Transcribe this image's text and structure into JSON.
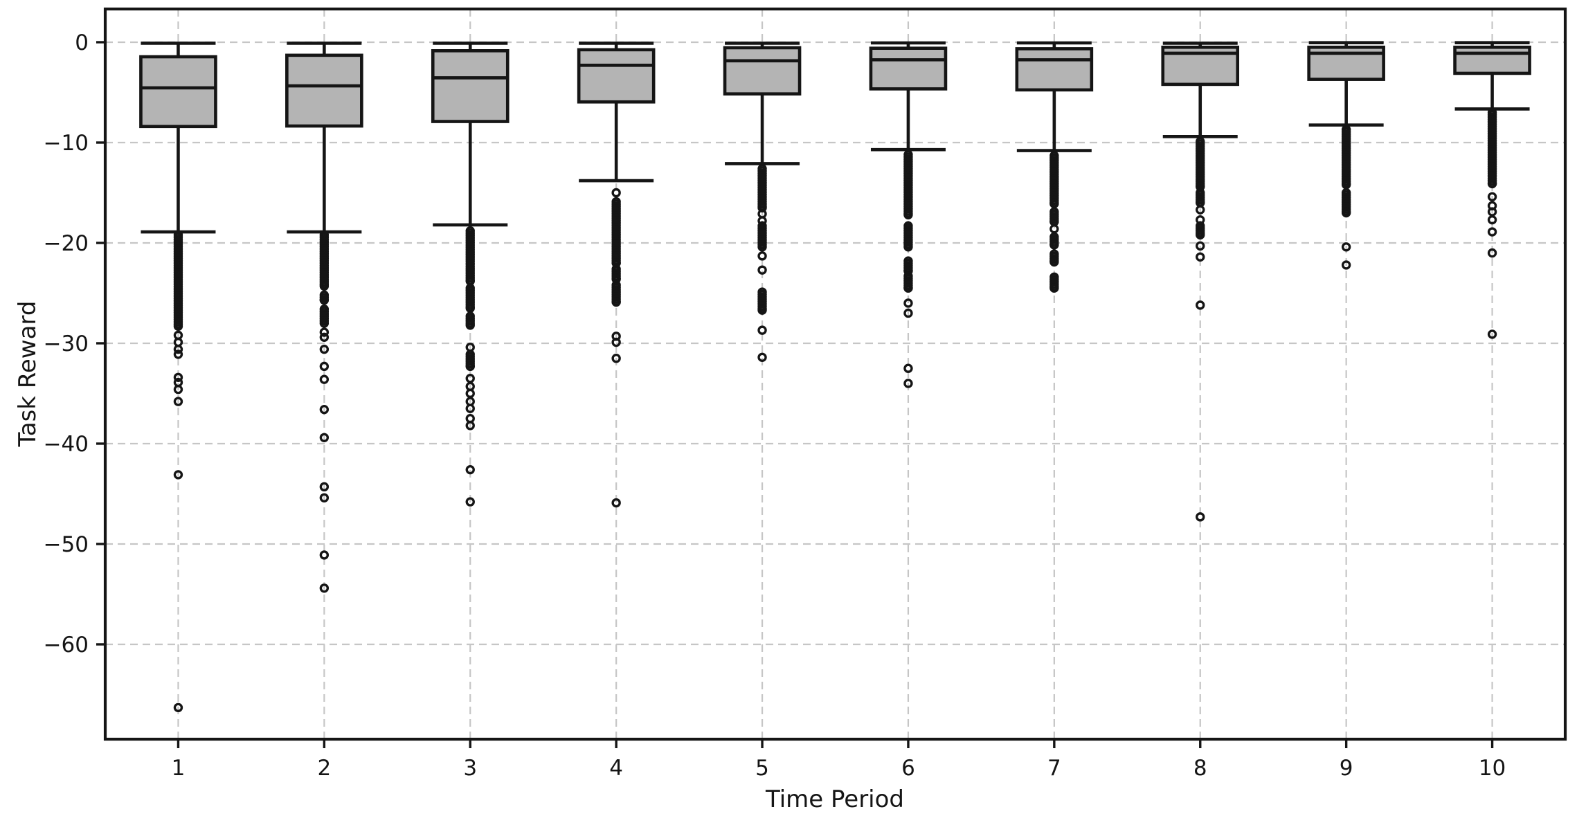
{
  "figure": {
    "background": "#ffffff",
    "description": "Box-and-whisker plot of Task Reward across 10 time periods"
  },
  "chart_data": {
    "type": "box",
    "title": "",
    "xlabel": "Time Period",
    "ylabel": "Task Reward",
    "categories": [
      "1",
      "2",
      "3",
      "4",
      "5",
      "6",
      "7",
      "8",
      "9",
      "10"
    ],
    "y_ticks": [
      0,
      -10,
      -20,
      -30,
      -40,
      -50,
      -60
    ],
    "y_tick_labels": [
      "0",
      "−10",
      "−20",
      "−30",
      "−40",
      "−50",
      "−60"
    ],
    "ylim": [
      -69.45,
      3.31
    ],
    "grid": {
      "shown": true,
      "style": "dashed",
      "axes": "both"
    },
    "legend": {
      "shown": false
    },
    "colors": {
      "box_fill": "#b4b4b4",
      "line": "#151515",
      "grid": "#c6c6c6",
      "background": "#ffffff",
      "text": "#151515"
    },
    "boxes": [
      {
        "label": "1",
        "whisker_high": -0.1,
        "q3": -1.45,
        "median": -4.55,
        "q1": -8.4,
        "whisker_low": -18.9,
        "outlier_clusters": [
          [
            -19.2,
            -28.3
          ]
        ],
        "outliers": [
          -29.2,
          -29.9,
          -30.6,
          -31.1,
          -33.4,
          -33.9,
          -34.6,
          -35.8,
          -43.1,
          -66.3
        ]
      },
      {
        "label": "2",
        "whisker_high": -0.1,
        "q3": -1.3,
        "median": -4.35,
        "q1": -8.35,
        "whisker_low": -18.9,
        "outlier_clusters": [
          [
            -19.2,
            -24.3
          ],
          [
            -25.2,
            -25.7
          ],
          [
            -26.6,
            -28.0
          ]
        ],
        "outliers": [
          -28.9,
          -29.4,
          -30.6,
          -32.3,
          -33.6,
          -36.6,
          -39.4,
          -44.3,
          -45.4,
          -51.1,
          -54.4
        ]
      },
      {
        "label": "3",
        "whisker_high": -0.1,
        "q3": -0.85,
        "median": -3.55,
        "q1": -7.9,
        "whisker_low": -18.2,
        "outlier_clusters": [
          [
            -18.8,
            -23.8
          ],
          [
            -24.5,
            -26.5
          ],
          [
            -27.3,
            -28.2
          ],
          [
            -31.1,
            -32.3
          ]
        ],
        "outliers": [
          -30.4,
          -33.5,
          -34.3,
          -35.0,
          -35.8,
          -36.5,
          -37.5,
          -38.2,
          -42.6,
          -45.8
        ]
      },
      {
        "label": "4",
        "whisker_high": -0.1,
        "q3": -0.75,
        "median": -2.3,
        "q1": -5.95,
        "whisker_low": -13.8,
        "outlier_clusters": [
          [
            -15.9,
            -22.0
          ],
          [
            -22.6,
            -23.6
          ],
          [
            -24.2,
            -25.9
          ]
        ],
        "outliers": [
          -15.0,
          -29.3,
          -29.9,
          -31.5,
          -45.9
        ]
      },
      {
        "label": "5",
        "whisker_high": -0.1,
        "q3": -0.55,
        "median": -1.85,
        "q1": -5.15,
        "whisker_low": -12.1,
        "outlier_clusters": [
          [
            -12.6,
            -16.5
          ],
          [
            -18.3,
            -20.4
          ],
          [
            -24.9,
            -26.7
          ]
        ],
        "outliers": [
          -17.1,
          -17.8,
          -21.3,
          -22.7,
          -28.7,
          -31.4
        ]
      },
      {
        "label": "6",
        "whisker_high": -0.07,
        "q3": -0.6,
        "median": -1.75,
        "q1": -4.65,
        "whisker_low": -10.7,
        "outlier_clusters": [
          [
            -11.2,
            -17.2
          ],
          [
            -18.3,
            -20.4
          ],
          [
            -21.8,
            -22.8
          ],
          [
            -23.3,
            -24.5
          ]
        ],
        "outliers": [
          -26.0,
          -27.0,
          -32.5,
          -34.0
        ]
      },
      {
        "label": "7",
        "whisker_high": -0.07,
        "q3": -0.65,
        "median": -1.75,
        "q1": -4.75,
        "whisker_low": -10.8,
        "outlier_clusters": [
          [
            -11.3,
            -16.1
          ],
          [
            -16.9,
            -17.9
          ],
          [
            -19.4,
            -20.2
          ],
          [
            -21.1,
            -21.9
          ],
          [
            -23.4,
            -24.5
          ]
        ],
        "outliers": [
          -18.6
        ]
      },
      {
        "label": "8",
        "whisker_high": -0.1,
        "q3": -0.5,
        "median": -1.1,
        "q1": -4.2,
        "whisker_low": -9.4,
        "outlier_clusters": [
          [
            -9.9,
            -14.4
          ],
          [
            -15.0,
            -16.0
          ],
          [
            -18.3,
            -19.2
          ]
        ],
        "outliers": [
          -16.7,
          -17.7,
          -20.3,
          -21.4,
          -26.2,
          -47.3
        ]
      },
      {
        "label": "9",
        "whisker_high": -0.05,
        "q3": -0.5,
        "median": -1.1,
        "q1": -3.7,
        "whisker_low": -8.25,
        "outlier_clusters": [
          [
            -8.7,
            -14.2
          ],
          [
            -15.0,
            -17.0
          ]
        ],
        "outliers": [
          -20.4,
          -22.2
        ]
      },
      {
        "label": "10",
        "whisker_high": -0.05,
        "q3": -0.5,
        "median": -1.1,
        "q1": -3.1,
        "whisker_low": -6.65,
        "outlier_clusters": [
          [
            -7.0,
            -14.1
          ]
        ],
        "outliers": [
          -15.4,
          -16.3,
          -16.9,
          -17.7,
          -18.9,
          -21.0,
          -29.1
        ]
      }
    ]
  }
}
